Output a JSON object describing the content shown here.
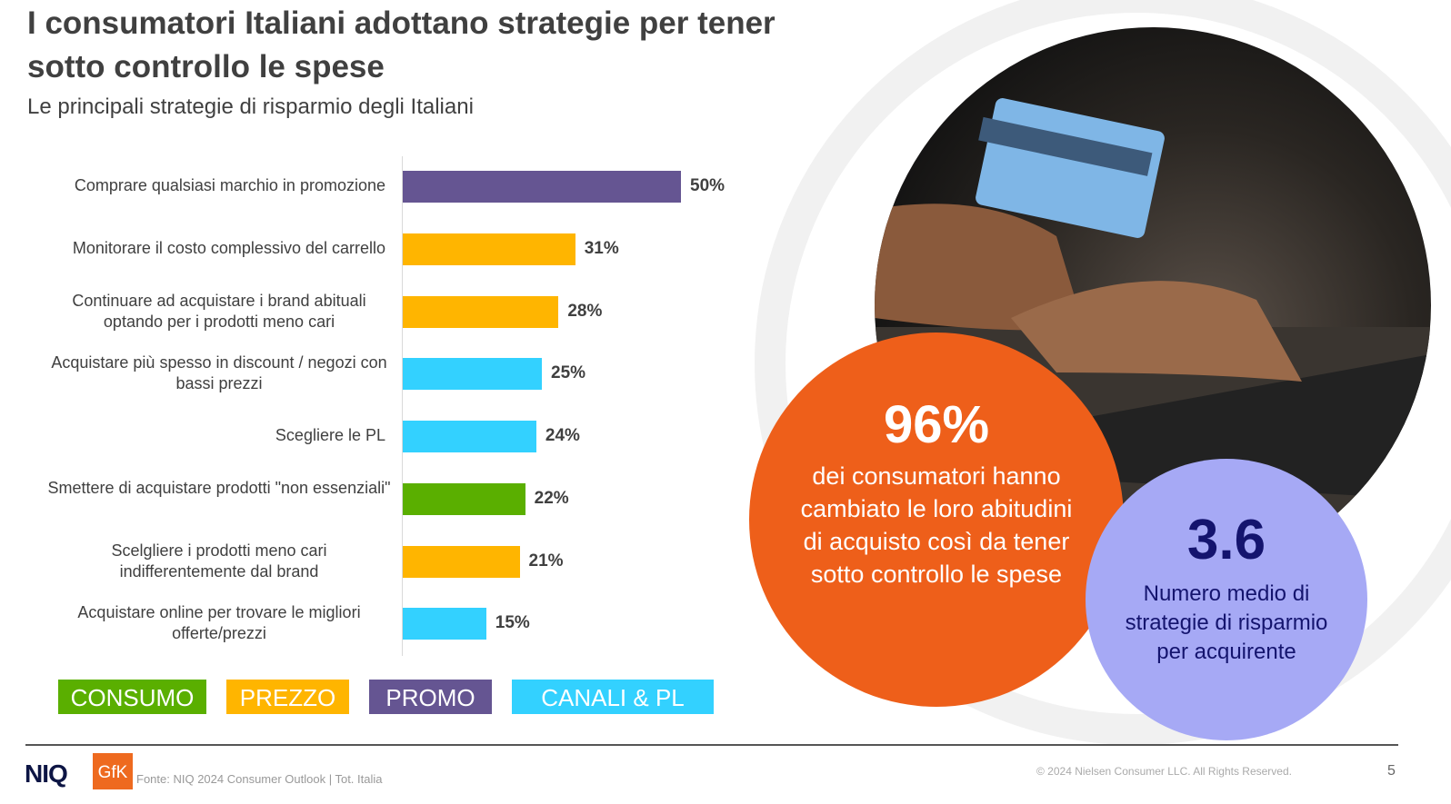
{
  "title": "I consumatori Italiani adottano strategie per tener sotto controllo le spese",
  "subtitle": "Le principali strategie di risparmio degli Italiani",
  "chart_data": {
    "type": "bar",
    "orientation": "horizontal",
    "xlim": [
      0,
      50
    ],
    "unit": "%",
    "categories": [
      "Comprare qualsiasi marchio in promozione",
      "Monitorare il costo complessivo del carrello",
      "Continuare ad acquistare i brand abituali optando per i prodotti meno cari",
      "Acquistare più spesso in discount / negozi con bassi prezzi",
      "Scegliere le PL",
      "Smettere di acquistare prodotti \"non essenziali\"",
      "Scelgliere i prodotti meno cari indifferentemente dal brand",
      "Acquistare online per trovare le migliori offerte/prezzi"
    ],
    "values": [
      50,
      31,
      28,
      25,
      24,
      22,
      21,
      15
    ],
    "value_labels": [
      "50%",
      "31%",
      "28%",
      "25%",
      "24%",
      "22%",
      "21%",
      "15%"
    ],
    "groups": [
      "PROMO",
      "PREZZO",
      "PREZZO",
      "CANALI & PL",
      "CANALI & PL",
      "CONSUMO",
      "PREZZO",
      "CANALI & PL"
    ],
    "legend": [
      {
        "name": "CONSUMO",
        "color": "#5aaf00"
      },
      {
        "name": "PREZZO",
        "color": "#ffb500"
      },
      {
        "name": "PROMO",
        "color": "#655592"
      },
      {
        "name": "CANALI & PL",
        "color": "#33d1ff"
      }
    ]
  },
  "stat1": {
    "value": "96%",
    "text": "dei consumatori hanno cambiato le loro abitudini di acquisto così da tener sotto controllo le spese"
  },
  "stat2": {
    "value": "3.6",
    "text": "Numero medio di strategie di risparmio per acquirente"
  },
  "footer": {
    "logo_niq": "NIQ",
    "logo_gfk": "GfK",
    "source": "Fonte: NIQ 2024 Consumer Outlook | Tot. Italia",
    "copyright": "© 2024 Nielsen Consumer LLC. All Rights Reserved.",
    "page": "5"
  }
}
